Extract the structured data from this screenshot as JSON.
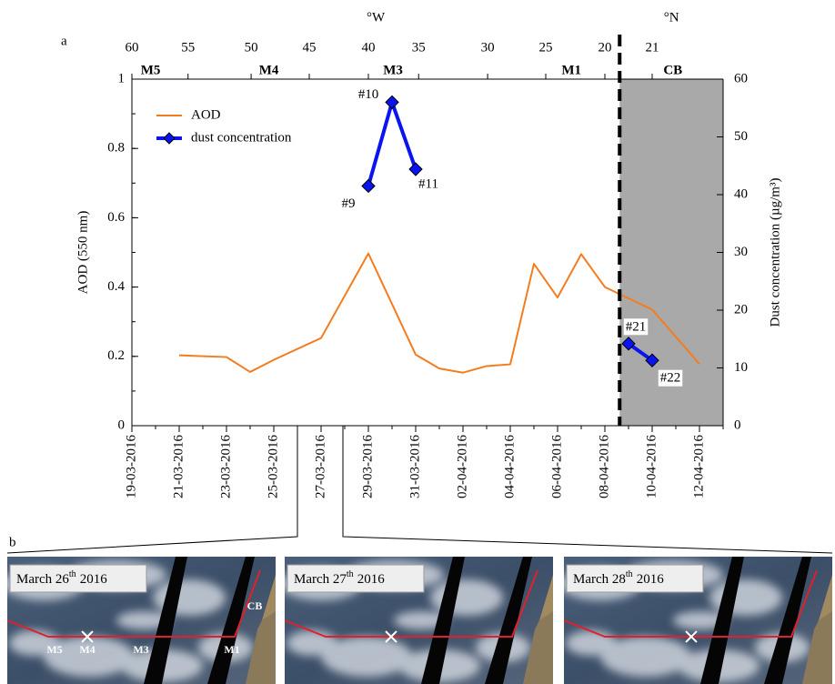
{
  "chart_data": {
    "type": "line",
    "panel_labels": [
      "a",
      "b"
    ],
    "ylabel": "AOD (550 nm)",
    "y2label": "Dust concentration (µg/m³)",
    "top_axis_label": "°W",
    "top_axis2_label": "°N",
    "xlim": [
      "2016-03-19",
      "2016-04-13"
    ],
    "xticks": [
      {
        "value": "2016-03-19",
        "label": "19-03-2016"
      },
      {
        "value": "2016-03-21",
        "label": "21-03-2016"
      },
      {
        "value": "2016-03-23",
        "label": "23-03-2016"
      },
      {
        "value": "2016-03-25",
        "label": "25-03-2016"
      },
      {
        "value": "2016-03-27",
        "label": "27-03-2016"
      },
      {
        "value": "2016-03-29",
        "label": "29-03-2016"
      },
      {
        "value": "2016-03-31",
        "label": "31-03-2016"
      },
      {
        "value": "2016-04-02",
        "label": "02-04-2016"
      },
      {
        "value": "2016-04-04",
        "label": "04-04-2016"
      },
      {
        "value": "2016-04-06",
        "label": "06-04-2016"
      },
      {
        "value": "2016-04-08",
        "label": "08-04-2016"
      },
      {
        "value": "2016-04-10",
        "label": "10-04-2016"
      },
      {
        "value": "2016-04-12",
        "label": "12-04-2016"
      }
    ],
    "top_ticks": [
      {
        "value": 60,
        "x": "2016-03-19T00:00"
      },
      {
        "value": 55,
        "x": "2016-03-21T09:00"
      },
      {
        "value": 50,
        "x": "2016-03-24T01:00"
      },
      {
        "value": 45,
        "x": "2016-03-26T12:00"
      },
      {
        "value": 40,
        "x": "2016-03-29T00:00"
      },
      {
        "value": 35,
        "x": "2016-03-31T03:00"
      },
      {
        "value": 30,
        "x": "2016-04-03T01:00"
      },
      {
        "value": 25,
        "x": "2016-04-05T12:00"
      },
      {
        "value": 20,
        "x": "2016-04-08T00:00"
      }
    ],
    "top_ticks2": [
      {
        "value": 21,
        "x": "2016-04-10T00:00"
      }
    ],
    "ylim": [
      0,
      1
    ],
    "yticks": [
      0,
      0.2,
      0.4,
      0.6,
      0.8,
      1
    ],
    "y2lim": [
      0,
      60
    ],
    "y2ticks": [
      0,
      10,
      20,
      30,
      40,
      50,
      60
    ],
    "boundary": "2016-04-08T15:00",
    "shade_color": "#a9a9a9",
    "annotations": [
      {
        "text": "M5",
        "x": "2016-03-19T19:00"
      },
      {
        "text": "M4",
        "x": "2016-03-24T19:00"
      },
      {
        "text": "M3",
        "x": "2016-03-30T01:00"
      },
      {
        "text": "M1",
        "x": "2016-04-06T14:00"
      },
      {
        "text": "CB",
        "x": "2016-04-10T21:00"
      }
    ],
    "series": [
      {
        "name": "AOD",
        "color": "#f47c20",
        "x": [
          "2016-03-21",
          "2016-03-23",
          "2016-03-24",
          "2016-03-25",
          "2016-03-27",
          "2016-03-29",
          "2016-03-31",
          "2016-04-01",
          "2016-04-02",
          "2016-04-03",
          "2016-04-04",
          "2016-04-05",
          "2016-04-06",
          "2016-04-07",
          "2016-04-08",
          "2016-04-10",
          "2016-04-12"
        ],
        "values": [
          0.203,
          0.198,
          0.155,
          0.19,
          0.253,
          0.497,
          0.205,
          0.165,
          0.153,
          0.172,
          0.177,
          0.467,
          0.37,
          0.495,
          0.4,
          0.335,
          0.178
        ]
      },
      {
        "name": "dust concentration",
        "color": "#0a14f0",
        "axis": "y2",
        "x": [
          "2016-03-29",
          "2016-03-30",
          "2016-03-31",
          null,
          "2016-04-09",
          "2016-04-10"
        ],
        "values": [
          41.5,
          56,
          44.4,
          null,
          14.2,
          11.3
        ],
        "point_labels": [
          "#9",
          "#10",
          "#11",
          null,
          "#21",
          "#22"
        ]
      }
    ],
    "images": [
      {
        "date": "March 26",
        "ordinal": "th",
        "year": "2016",
        "labels": [
          "M5",
          "M4",
          "M3",
          "M1",
          "CB"
        ]
      },
      {
        "date": "March 27",
        "ordinal": "th",
        "year": "2016"
      },
      {
        "date": "March 28",
        "ordinal": "th",
        "year": "2016"
      }
    ]
  }
}
